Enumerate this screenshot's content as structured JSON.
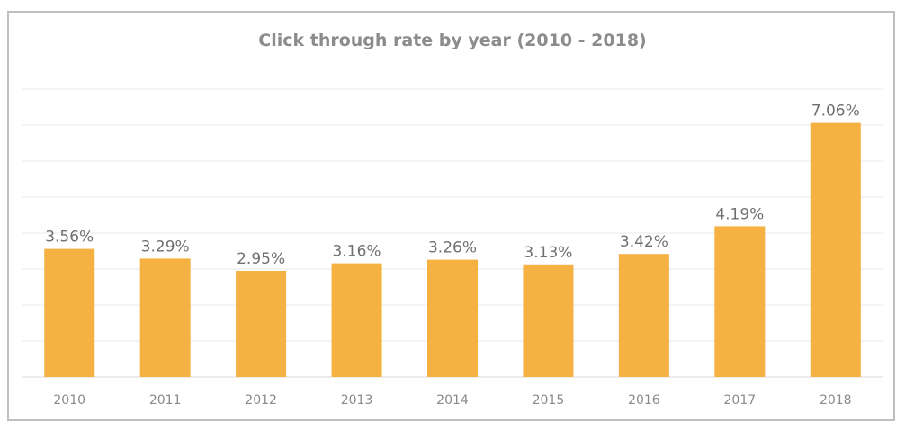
{
  "chart_data": {
    "type": "bar",
    "title": "Click through rate by year (2010 - 2018)",
    "categories": [
      "2010",
      "2011",
      "2012",
      "2013",
      "2014",
      "2015",
      "2016",
      "2017",
      "2018"
    ],
    "values": [
      3.56,
      3.29,
      2.95,
      3.16,
      3.26,
      3.13,
      3.42,
      4.19,
      7.06
    ],
    "data_labels": [
      "3.56%",
      "3.29%",
      "2.95%",
      "3.16%",
      "3.26%",
      "3.13%",
      "3.42%",
      "4.19%",
      "7.06%"
    ],
    "xlabel": "",
    "ylabel": "",
    "ylim": [
      0,
      8
    ],
    "grid": true,
    "bar_color": "#F5B142",
    "legend": "none"
  }
}
